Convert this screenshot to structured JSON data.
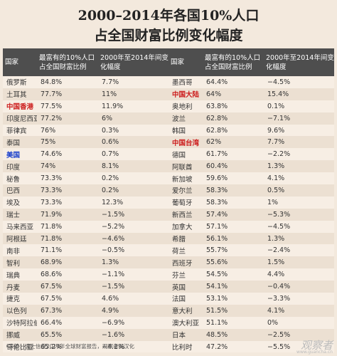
{
  "title": {
    "line1": "2000–2014年各国10%人口",
    "line2": "占全国财富比例变化幅度"
  },
  "headers": {
    "country": "国家",
    "share": "最富有的10%人口占全国财富比例",
    "change": "2000年至2014年间变化幅度"
  },
  "left_rows": [
    {
      "country": "俄罗斯",
      "share": "84.8%",
      "change": "7.7%"
    },
    {
      "country": "土耳其",
      "share": "77.7%",
      "change": "11%"
    },
    {
      "country": "中国香港",
      "share": "77.5%",
      "change": "11.9%",
      "highlight": "red"
    },
    {
      "country": "印度尼西亚",
      "share": "77.2%",
      "change": "6%"
    },
    {
      "country": "菲律宾",
      "share": "76%",
      "change": "0.3%"
    },
    {
      "country": "泰国",
      "share": "75%",
      "change": "0.6%"
    },
    {
      "country": "美国",
      "share": "74.6%",
      "change": "0.7%",
      "highlight": "blue"
    },
    {
      "country": "印度",
      "share": "74%",
      "change": "8.1%"
    },
    {
      "country": "秘鲁",
      "share": "73.3%",
      "change": "0.2%"
    },
    {
      "country": "巴西",
      "share": "73.3%",
      "change": "0.2%"
    },
    {
      "country": "埃及",
      "share": "73.3%",
      "change": "12.3%"
    },
    {
      "country": "瑞士",
      "share": "71.9%",
      "change": "−1.5%"
    },
    {
      "country": "马来西亚",
      "share": "71.8%",
      "change": "−5.2%"
    },
    {
      "country": "阿根廷",
      "share": "71.8%",
      "change": "−4.6%"
    },
    {
      "country": "南非",
      "share": "71.1%",
      "change": "−0.5%"
    },
    {
      "country": "智利",
      "share": "68.9%",
      "change": "1.3%"
    },
    {
      "country": "瑞典",
      "share": "68.6%",
      "change": "−1.1%"
    },
    {
      "country": "丹麦",
      "share": "67.5%",
      "change": "−1.5%"
    },
    {
      "country": "捷克",
      "share": "67.5%",
      "change": "4.6%"
    },
    {
      "country": "以色列",
      "share": "67.3%",
      "change": "4.9%"
    },
    {
      "country": "沙特阿拉伯",
      "share": "66.4%",
      "change": "−6.9%"
    },
    {
      "country": "挪威",
      "share": "65.5%",
      "change": "−1.6%"
    },
    {
      "country": "哥伦比亚",
      "share": "65.2%",
      "change": "−4.2%"
    }
  ],
  "right_rows": [
    {
      "country": "墨西哥",
      "share": "64.4%",
      "change": "−4.5%"
    },
    {
      "country": "中国大陆",
      "share": "64%",
      "change": "15.4%",
      "highlight": "red"
    },
    {
      "country": "奥地利",
      "share": "63.8%",
      "change": "0.1%"
    },
    {
      "country": "波兰",
      "share": "62.8%",
      "change": "−7.1%"
    },
    {
      "country": "韩国",
      "share": "62.8%",
      "change": "9.6%"
    },
    {
      "country": "中国台湾",
      "share": "62%",
      "change": "7.7%",
      "highlight": "red"
    },
    {
      "country": "德国",
      "share": "61.7%",
      "change": "−2.2%"
    },
    {
      "country": "阿联酋",
      "share": "60.4%",
      "change": "1.3%"
    },
    {
      "country": "新加坡",
      "share": "59.6%",
      "change": "4.1%"
    },
    {
      "country": "爱尔兰",
      "share": "58.3%",
      "change": "0.5%"
    },
    {
      "country": "葡萄牙",
      "share": "58.3%",
      "change": "1%"
    },
    {
      "country": "新西兰",
      "share": "57.4%",
      "change": "−5.3%"
    },
    {
      "country": "加拿大",
      "share": "57.1%",
      "change": "−4.5%"
    },
    {
      "country": "希腊",
      "share": "56.1%",
      "change": "1.3%"
    },
    {
      "country": "荷兰",
      "share": "55.7%",
      "change": "−2.4%"
    },
    {
      "country": "西班牙",
      "share": "55.6%",
      "change": "1.5%"
    },
    {
      "country": "芬兰",
      "share": "54.5%",
      "change": "4.4%"
    },
    {
      "country": "英国",
      "share": "54.1%",
      "change": "−0.4%"
    },
    {
      "country": "法国",
      "share": "53.1%",
      "change": "−3.3%"
    },
    {
      "country": "意大利",
      "share": "51.5%",
      "change": "4.1%"
    },
    {
      "country": "澳大利亚",
      "share": "51.1%",
      "change": "0%"
    },
    {
      "country": "日本",
      "share": "48.5%",
      "change": "−2.5%"
    },
    {
      "country": "比利时",
      "share": "47.2%",
      "change": "−5.5%"
    }
  ],
  "footer": "•来源：瑞士信贷2014年全球财富报告，观察者网汉化",
  "watermark": "观察者",
  "watermark_sub": "www.guancha.cn"
}
